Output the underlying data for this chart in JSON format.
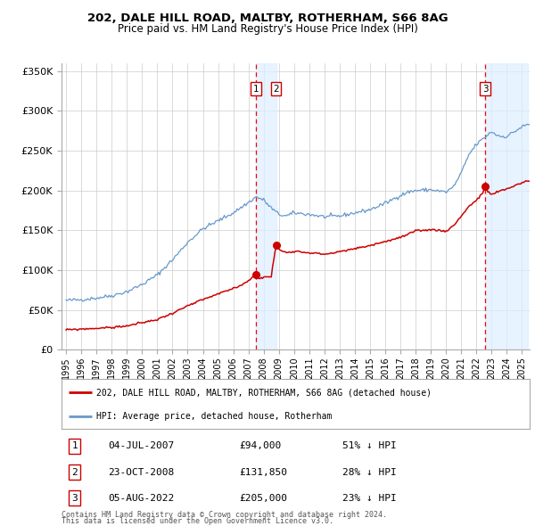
{
  "title1": "202, DALE HILL ROAD, MALTBY, ROTHERHAM, S66 8AG",
  "title2": "Price paid vs. HM Land Registry's House Price Index (HPI)",
  "xlim": [
    1994.7,
    2025.5
  ],
  "ylim": [
    0,
    360000
  ],
  "yticks": [
    0,
    50000,
    100000,
    150000,
    200000,
    250000,
    300000,
    350000
  ],
  "ytick_labels": [
    "£0",
    "£50K",
    "£100K",
    "£150K",
    "£200K",
    "£250K",
    "£300K",
    "£350K"
  ],
  "xtick_years": [
    1995,
    1996,
    1997,
    1998,
    1999,
    2000,
    2001,
    2002,
    2003,
    2004,
    2005,
    2006,
    2007,
    2008,
    2009,
    2010,
    2011,
    2012,
    2013,
    2014,
    2015,
    2016,
    2017,
    2018,
    2019,
    2020,
    2021,
    2022,
    2023,
    2024,
    2025
  ],
  "sale1_date": 2007.5,
  "sale1_price": 94000,
  "sale2_date": 2008.81,
  "sale2_price": 131850,
  "sale3_date": 2022.59,
  "sale3_price": 205000,
  "red_line_color": "#cc0000",
  "blue_line_color": "#6699cc",
  "marker_color": "#cc0000",
  "shade_color": "#ddeeff",
  "shade_alpha": 0.7,
  "dashed_line_color": "#ff0000",
  "grid_color": "#cccccc",
  "background_color": "#ffffff",
  "legend1": "202, DALE HILL ROAD, MALTBY, ROTHERHAM, S66 8AG (detached house)",
  "legend2": "HPI: Average price, detached house, Rotherham",
  "table_row1": [
    "1",
    "04-JUL-2007",
    "£94,000",
    "51% ↓ HPI"
  ],
  "table_row2": [
    "2",
    "23-OCT-2008",
    "£131,850",
    "28% ↓ HPI"
  ],
  "table_row3": [
    "3",
    "05-AUG-2022",
    "£205,000",
    "23% ↓ HPI"
  ],
  "footer1": "Contains HM Land Registry data © Crown copyright and database right 2024.",
  "footer2": "This data is licensed under the Open Government Licence v3.0.",
  "sale3_shade_end": 2025.4
}
